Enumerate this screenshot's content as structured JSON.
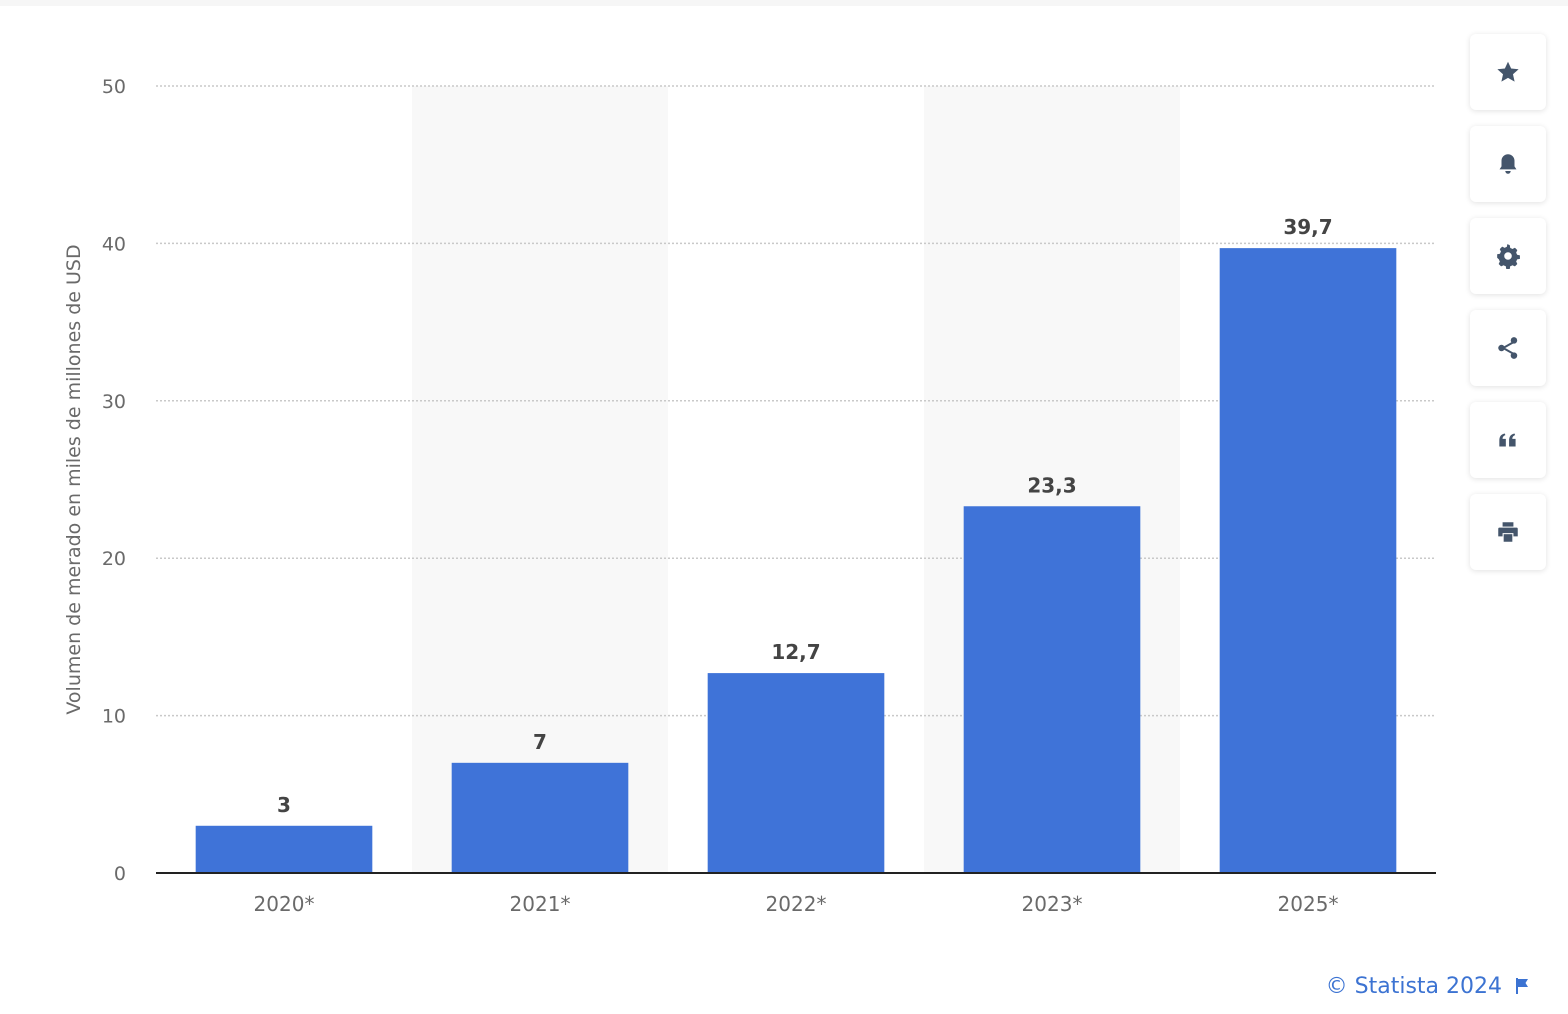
{
  "chart_data": {
    "type": "bar",
    "categories": [
      "2020*",
      "2021*",
      "2022*",
      "2023*",
      "2025*"
    ],
    "values": [
      3,
      7,
      12.7,
      23.3,
      39.7
    ],
    "value_labels": [
      "3",
      "7",
      "12,7",
      "23,3",
      "39,7"
    ],
    "ylabel": "Volumen de merado en miles de millones de USD",
    "xlabel": "",
    "ylim": [
      0,
      50
    ],
    "yticks": [
      0,
      10,
      20,
      30,
      40,
      50
    ],
    "ytick_labels": [
      "0",
      "10",
      "20",
      "30",
      "40",
      "50"
    ],
    "grid": true,
    "bar_color": "#3f73d8",
    "alt_band_color": "#f8f8f8"
  },
  "toolbar": {
    "icons": [
      "star-icon",
      "bell-icon",
      "gear-icon",
      "share-icon",
      "quote-icon",
      "print-icon"
    ]
  },
  "footer": {
    "credit": "© Statista 2024"
  }
}
